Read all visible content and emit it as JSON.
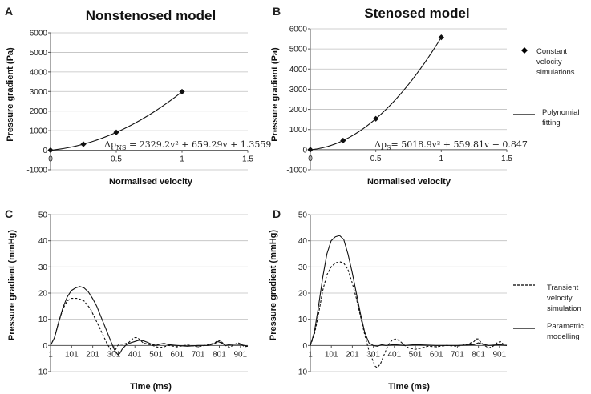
{
  "figure": {
    "legend_top": [
      {
        "label_lines": [
          "Constant",
          "velocity",
          "simulations"
        ],
        "style": "diamond"
      },
      {
        "label_lines": [
          "Polynomial",
          "fitting"
        ],
        "style": "solid"
      }
    ],
    "legend_bottom": [
      {
        "label_lines": [
          "Transient",
          "velocity",
          "simulation"
        ],
        "style": "dashed"
      },
      {
        "label_lines": [
          "Parametric",
          "modelling"
        ],
        "style": "solid"
      }
    ]
  },
  "chart_data": [
    {
      "id": "A",
      "panel_label": "A",
      "title": "Nonstenosed model",
      "type": "scatter",
      "xlabel": "Normalised velocity",
      "ylabel": "Pressure gradient (Pa)",
      "xlim": [
        0,
        1.5
      ],
      "ylim": [
        -1000,
        6000
      ],
      "xticks": [
        0,
        0.5,
        1,
        1.5
      ],
      "xtick_labels": [
        "0",
        "0.5",
        "1",
        "1.5"
      ],
      "yticks": [
        -1000,
        0,
        1000,
        2000,
        3000,
        4000,
        5000,
        6000
      ],
      "ytick_labels": [
        "-1000",
        "0",
        "1000",
        "2000",
        "3000",
        "4000",
        "5000",
        "6000"
      ],
      "grid": "horizontal",
      "series": [
        {
          "name": "Constant velocity simulations",
          "style": "diamond",
          "x": [
            0,
            0.25,
            0.5,
            1
          ],
          "y": [
            1.4,
            311,
            914,
            2990
          ]
        },
        {
          "name": "Polynomial fitting",
          "style": "solid",
          "coefficients": [
            2329.2,
            659.29,
            1.3559
          ],
          "x_range": [
            0,
            1
          ]
        }
      ],
      "equation": {
        "lhs": "Δp",
        "sub": "NS",
        "rhs": " = 2329.2v² + 659.29v + 1.3559"
      }
    },
    {
      "id": "B",
      "panel_label": "B",
      "title": "Stenosed model",
      "type": "scatter",
      "xlabel": "Normalised velocity",
      "ylabel": "Pressure gradient (Pa)",
      "xlim": [
        0,
        1.5
      ],
      "ylim": [
        -1000,
        6000
      ],
      "xticks": [
        0,
        0.5,
        1,
        1.5
      ],
      "xtick_labels": [
        "0",
        "0.5",
        "1",
        "1.5"
      ],
      "yticks": [
        -1000,
        0,
        1000,
        2000,
        3000,
        4000,
        5000,
        6000
      ],
      "ytick_labels": [
        "-1000",
        "0",
        "1000",
        "2000",
        "3000",
        "4000",
        "5000",
        "6000"
      ],
      "grid": "horizontal",
      "series": [
        {
          "name": "Constant velocity simulations",
          "style": "diamond",
          "x": [
            0,
            0.25,
            0.5,
            1
          ],
          "y": [
            -0.8,
            453,
            1535,
            5578
          ]
        },
        {
          "name": "Polynomial fitting",
          "style": "solid",
          "coefficients": [
            5018.9,
            559.81,
            -0.847
          ],
          "x_range": [
            0,
            1
          ]
        }
      ],
      "equation": {
        "lhs": "Δp",
        "sub": "S",
        "rhs": "= 5018.9v² + 559.81v − 0.847"
      }
    },
    {
      "id": "C",
      "panel_label": "C",
      "title": "",
      "type": "line",
      "xlabel": "Time (ms)",
      "ylabel": "Pressure gradient (mmHg)",
      "xlim": [
        1,
        936
      ],
      "ylim": [
        -10,
        50
      ],
      "xticks": [
        1,
        101,
        201,
        301,
        401,
        501,
        601,
        701,
        801,
        901
      ],
      "xtick_labels": [
        "1",
        "101",
        "201",
        "301",
        "401",
        "501",
        "601",
        "701",
        "801",
        "901"
      ],
      "yticks": [
        -10,
        0,
        10,
        20,
        30,
        40,
        50
      ],
      "ytick_labels": [
        "-10",
        "0",
        "10",
        "20",
        "30",
        "40",
        "50"
      ],
      "grid": "horizontal",
      "series": [
        {
          "name": "Transient velocity simulation",
          "style": "dashed",
          "x": [
            1,
            20,
            40,
            60,
            80,
            100,
            130,
            160,
            190,
            220,
            250,
            270,
            290,
            300,
            310,
            320,
            330,
            350,
            370,
            390,
            400,
            410,
            420,
            440,
            460,
            480,
            500,
            520,
            540,
            560,
            600,
            650,
            700,
            750,
            780,
            795,
            810,
            830,
            850,
            870,
            890,
            905,
            920,
            936
          ],
          "y": [
            0,
            3,
            9,
            14,
            17,
            18,
            18,
            17,
            14,
            9,
            4,
            0.5,
            -2,
            -2.5,
            -1.5,
            0,
            0.5,
            0.5,
            1,
            2.5,
            3,
            3,
            2.5,
            1,
            0.5,
            0.2,
            -0.5,
            -0.8,
            -0.5,
            0,
            -0.5,
            0.2,
            -0.5,
            0.3,
            1,
            2,
            1.5,
            0,
            -0.8,
            0.3,
            1,
            0.5,
            -0.5,
            -0.3
          ]
        },
        {
          "name": "Parametric modelling",
          "style": "solid",
          "x": [
            1,
            20,
            40,
            60,
            80,
            100,
            120,
            140,
            160,
            180,
            200,
            220,
            240,
            260,
            280,
            300,
            310,
            320,
            330,
            340,
            360,
            380,
            400,
            420,
            440,
            460,
            480,
            500,
            520,
            540,
            560,
            600,
            650,
            700,
            750,
            780,
            795,
            810,
            830,
            850,
            880,
            905,
            936
          ],
          "y": [
            0,
            3,
            9,
            14.5,
            18.5,
            21,
            22,
            22.5,
            22,
            20.5,
            18,
            15,
            11,
            7,
            3,
            -1,
            -2.5,
            -3.5,
            -3,
            -1.5,
            0.3,
            1,
            1.5,
            2,
            1.8,
            1.2,
            0.5,
            0,
            0.5,
            0.8,
            0.3,
            0,
            -0.3,
            0,
            0,
            0.8,
            1.5,
            1,
            0,
            0.3,
            0.5,
            0.3,
            -0.3
          ]
        }
      ]
    },
    {
      "id": "D",
      "panel_label": "D",
      "title": "",
      "type": "line",
      "xlabel": "Time (ms)",
      "ylabel": "Pressure gradient (mmHg)",
      "xlim": [
        1,
        936
      ],
      "ylim": [
        -10,
        50
      ],
      "xticks": [
        1,
        101,
        201,
        301,
        401,
        501,
        601,
        701,
        801,
        901
      ],
      "xtick_labels": [
        "1",
        "101",
        "201",
        "301",
        "401",
        "501",
        "601",
        "701",
        "801",
        "901"
      ],
      "yticks": [
        -10,
        0,
        10,
        20,
        30,
        40,
        50
      ],
      "ytick_labels": [
        "-10",
        "0",
        "10",
        "20",
        "30",
        "40",
        "50"
      ],
      "grid": "horizontal",
      "series": [
        {
          "name": "Transient velocity simulation",
          "style": "dashed",
          "x": [
            1,
            20,
            40,
            60,
            80,
            100,
            120,
            140,
            160,
            180,
            200,
            220,
            240,
            260,
            280,
            300,
            310,
            320,
            335,
            350,
            370,
            390,
            410,
            430,
            450,
            470,
            500,
            530,
            560,
            600,
            650,
            700,
            750,
            780,
            790,
            800,
            815,
            830,
            850,
            870,
            890,
            905,
            920,
            936
          ],
          "y": [
            0,
            4,
            12,
            21,
            27,
            30,
            31.5,
            32,
            31.5,
            29,
            24,
            18,
            11,
            4,
            -2,
            -6,
            -8,
            -8.5,
            -7,
            -4,
            0,
            2,
            2.5,
            1.5,
            0,
            -1,
            -1.5,
            -1,
            -0.3,
            -0.5,
            0,
            -0.3,
            0.5,
            1.5,
            2.5,
            2.5,
            1,
            0,
            -1,
            -0.3,
            1,
            1.5,
            0.5,
            0
          ]
        },
        {
          "name": "Parametric modelling",
          "style": "solid",
          "x": [
            1,
            20,
            40,
            60,
            80,
            100,
            120,
            140,
            160,
            180,
            200,
            220,
            240,
            260,
            280,
            300,
            320,
            340,
            360,
            400,
            450,
            500,
            600,
            700,
            780,
            800,
            820,
            850,
            900,
            936
          ],
          "y": [
            0,
            5,
            15,
            26,
            35,
            40,
            41.5,
            42,
            40.5,
            35,
            28,
            20,
            12,
            5,
            1,
            0,
            -0.3,
            0.3,
            0,
            0.3,
            0,
            0.3,
            0,
            0,
            0.3,
            1,
            0.5,
            0,
            0.3,
            0
          ]
        }
      ]
    }
  ]
}
